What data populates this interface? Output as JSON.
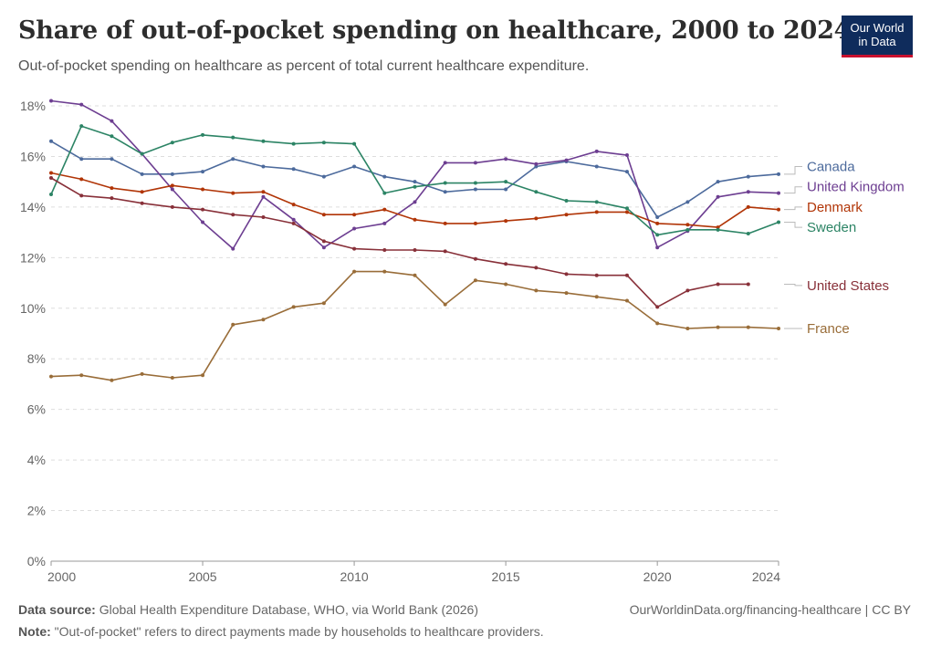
{
  "header": {
    "title": "Share of out-of-pocket spending on healthcare, 2000 to 2024",
    "subtitle": "Out-of-pocket spending on healthcare as percent of total current healthcare expenditure."
  },
  "logo": {
    "line1": "Our World",
    "line2": "in Data"
  },
  "footer": {
    "source_label": "Data source:",
    "source_text": "Global Health Expenditure Database, WHO, via World Bank (2026)",
    "url_text": "OurWorldinData.org/financing-healthcare | CC BY",
    "note_label": "Note:",
    "note_text": "\"Out-of-pocket\" refers to direct payments made by households to healthcare providers."
  },
  "chart_data": {
    "type": "line",
    "xlim": [
      2000,
      2024
    ],
    "ylim": [
      0,
      18
    ],
    "x_ticks": [
      "2000",
      "2005",
      "2010",
      "2015",
      "2020",
      "2024"
    ],
    "y_ticks": [
      "0%",
      "2%",
      "4%",
      "6%",
      "8%",
      "10%",
      "12%",
      "14%",
      "16%",
      "18%"
    ],
    "grid": true,
    "legend_placement": "right, labels at line ends",
    "series": [
      {
        "name": "Canada",
        "color": "#4c6a9c",
        "x": [
          2000,
          2001,
          2002,
          2003,
          2004,
          2005,
          2006,
          2007,
          2008,
          2009,
          2010,
          2011,
          2012,
          2013,
          2014,
          2015,
          2016,
          2017,
          2018,
          2019,
          2020,
          2021,
          2022,
          2023,
          2024
        ],
        "y": [
          16.6,
          15.9,
          15.9,
          15.3,
          15.3,
          15.4,
          15.9,
          15.6,
          15.5,
          15.2,
          15.6,
          15.2,
          15.0,
          14.6,
          14.7,
          14.7,
          15.6,
          15.8,
          15.6,
          15.4,
          13.6,
          14.2,
          15.0,
          15.2,
          15.3
        ]
      },
      {
        "name": "United Kingdom",
        "color": "#6d3e91",
        "x": [
          2000,
          2001,
          2002,
          2003,
          2004,
          2005,
          2006,
          2007,
          2008,
          2009,
          2010,
          2011,
          2012,
          2013,
          2014,
          2015,
          2016,
          2017,
          2018,
          2019,
          2020,
          2021,
          2022,
          2023,
          2024
        ],
        "y": [
          18.2,
          18.05,
          17.4,
          16.1,
          14.7,
          13.4,
          12.35,
          14.4,
          13.5,
          12.4,
          13.15,
          13.35,
          14.2,
          15.75,
          15.75,
          15.9,
          15.7,
          15.85,
          16.2,
          16.05,
          12.4,
          13.05,
          14.4,
          14.6,
          14.55
        ]
      },
      {
        "name": "Denmark",
        "color": "#b13507",
        "x": [
          2000,
          2001,
          2002,
          2003,
          2004,
          2005,
          2006,
          2007,
          2008,
          2009,
          2010,
          2011,
          2012,
          2013,
          2014,
          2015,
          2016,
          2017,
          2018,
          2019,
          2020,
          2021,
          2022,
          2023,
          2024
        ],
        "y": [
          15.35,
          15.1,
          14.75,
          14.6,
          14.85,
          14.7,
          14.55,
          14.6,
          14.1,
          13.7,
          13.7,
          13.9,
          13.5,
          13.35,
          13.35,
          13.45,
          13.55,
          13.7,
          13.8,
          13.8,
          13.35,
          13.3,
          13.2,
          14.0,
          13.9
        ]
      },
      {
        "name": "Sweden",
        "color": "#2c8465",
        "x": [
          2000,
          2001,
          2002,
          2003,
          2004,
          2005,
          2006,
          2007,
          2008,
          2009,
          2010,
          2011,
          2012,
          2013,
          2014,
          2015,
          2016,
          2017,
          2018,
          2019,
          2020,
          2021,
          2022,
          2023,
          2024
        ],
        "y": [
          14.5,
          17.2,
          16.8,
          16.1,
          16.55,
          16.85,
          16.75,
          16.6,
          16.5,
          16.55,
          16.5,
          14.55,
          14.8,
          14.95,
          14.95,
          15.0,
          14.6,
          14.25,
          14.2,
          13.95,
          12.9,
          13.1,
          13.1,
          12.95,
          13.4
        ]
      },
      {
        "name": "United States",
        "color": "#883039",
        "x": [
          2000,
          2001,
          2002,
          2003,
          2004,
          2005,
          2006,
          2007,
          2008,
          2009,
          2010,
          2011,
          2012,
          2013,
          2014,
          2015,
          2016,
          2017,
          2018,
          2019,
          2020,
          2021,
          2022,
          2023
        ],
        "y": [
          15.15,
          14.45,
          14.35,
          14.15,
          14.0,
          13.9,
          13.7,
          13.6,
          13.35,
          12.65,
          12.35,
          12.3,
          12.3,
          12.25,
          11.95,
          11.75,
          11.6,
          11.35,
          11.3,
          11.3,
          10.05,
          10.7,
          10.95,
          10.95
        ]
      },
      {
        "name": "France",
        "color": "#996d39",
        "x": [
          2000,
          2001,
          2002,
          2003,
          2004,
          2005,
          2006,
          2007,
          2008,
          2009,
          2010,
          2011,
          2012,
          2013,
          2014,
          2015,
          2016,
          2017,
          2018,
          2019,
          2020,
          2021,
          2022,
          2023,
          2024
        ],
        "y": [
          7.3,
          7.35,
          7.15,
          7.4,
          7.25,
          7.35,
          9.35,
          9.55,
          10.05,
          10.2,
          11.45,
          11.45,
          11.3,
          10.15,
          11.1,
          10.95,
          10.7,
          10.6,
          10.45,
          10.3,
          9.4,
          9.2,
          9.25,
          9.25,
          9.2
        ]
      }
    ],
    "labels": [
      {
        "name": "Canada",
        "color": "#4c6a9c",
        "anchor": 15.3,
        "label_y": 15.6
      },
      {
        "name": "United Kingdom",
        "color": "#6d3e91",
        "anchor": 14.55,
        "label_y": 14.8
      },
      {
        "name": "Denmark",
        "color": "#b13507",
        "anchor": 13.9,
        "label_y": 14.0
      },
      {
        "name": "Sweden",
        "color": "#2c8465",
        "anchor": 13.4,
        "label_y": 13.2
      },
      {
        "name": "United States",
        "color": "#883039",
        "anchor": 10.95,
        "label_y": 10.9
      },
      {
        "name": "France",
        "color": "#996d39",
        "anchor": 9.2,
        "label_y": 9.2
      }
    ]
  }
}
